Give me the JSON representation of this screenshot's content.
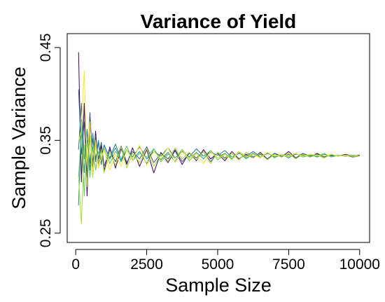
{
  "chart_data": {
    "type": "line",
    "title": "Variance of Yield",
    "xlabel": "Sample Size",
    "ylabel": "Sample Variance",
    "xlim": [
      -300,
      10350
    ],
    "ylim": [
      0.24,
      0.465
    ],
    "x_ticks": [
      0,
      2500,
      5000,
      7500,
      10000
    ],
    "x_tick_labels": [
      "0",
      "2500",
      "5000",
      "7500",
      "10000"
    ],
    "y_ticks": [
      0.25,
      0.35,
      0.45
    ],
    "y_tick_labels": [
      "0.25",
      "0.35",
      "0.45"
    ],
    "grid": false,
    "legend": "none",
    "converges_to": 0.333,
    "sample_sizes": [
      100,
      200,
      300,
      400,
      500,
      600,
      700,
      800,
      900,
      1000,
      1200,
      1400,
      1600,
      1800,
      2000,
      2250,
      2500,
      2750,
      3000,
      3250,
      3500,
      3750,
      4000,
      4250,
      4500,
      4750,
      5000,
      5250,
      5500,
      5750,
      6000,
      6250,
      6500,
      6750,
      7000,
      7250,
      7500,
      7750,
      8000,
      8250,
      8500,
      8750,
      9000,
      9250,
      9500,
      9750,
      10000
    ],
    "series": [
      {
        "color": "#440154",
        "values": [
          0.445,
          0.305,
          0.39,
          0.29,
          0.372,
          0.318,
          0.36,
          0.322,
          0.345,
          0.317,
          0.343,
          0.32,
          0.341,
          0.324,
          0.342,
          0.322,
          0.34,
          0.315,
          0.337,
          0.326,
          0.339,
          0.324,
          0.337,
          0.328,
          0.34,
          0.33,
          0.336,
          0.328,
          0.338,
          0.33,
          0.335,
          0.331,
          0.337,
          0.33,
          0.336,
          0.332,
          0.338,
          0.331,
          0.335,
          0.332,
          0.336,
          0.332,
          0.334,
          0.333,
          0.335,
          0.333,
          0.334
        ]
      },
      {
        "color": "#3b528b",
        "values": [
          0.405,
          0.335,
          0.37,
          0.31,
          0.38,
          0.325,
          0.355,
          0.33,
          0.348,
          0.322,
          0.34,
          0.327,
          0.344,
          0.326,
          0.338,
          0.33,
          0.343,
          0.326,
          0.336,
          0.33,
          0.34,
          0.327,
          0.336,
          0.331,
          0.338,
          0.327,
          0.337,
          0.331,
          0.336,
          0.329,
          0.337,
          0.332,
          0.335,
          0.33,
          0.336,
          0.333,
          0.335,
          0.331,
          0.336,
          0.333,
          0.334,
          0.332,
          0.335,
          0.333,
          0.334,
          0.332,
          0.333
        ]
      },
      {
        "color": "#21918c",
        "values": [
          0.28,
          0.372,
          0.315,
          0.362,
          0.325,
          0.358,
          0.33,
          0.35,
          0.328,
          0.345,
          0.33,
          0.342,
          0.327,
          0.34,
          0.329,
          0.338,
          0.325,
          0.341,
          0.329,
          0.337,
          0.327,
          0.34,
          0.33,
          0.337,
          0.33,
          0.339,
          0.331,
          0.336,
          0.33,
          0.338,
          0.331,
          0.336,
          0.331,
          0.337,
          0.332,
          0.335,
          0.331,
          0.336,
          0.332,
          0.335,
          0.332,
          0.335,
          0.333,
          0.334,
          0.333,
          0.334,
          0.333
        ]
      },
      {
        "color": "#2c728e",
        "values": [
          0.34,
          0.39,
          0.33,
          0.36,
          0.318,
          0.352,
          0.327,
          0.348,
          0.324,
          0.345,
          0.331,
          0.346,
          0.329,
          0.34,
          0.332,
          0.343,
          0.33,
          0.338,
          0.333,
          0.342,
          0.331,
          0.338,
          0.332,
          0.341,
          0.333,
          0.337,
          0.334,
          0.339,
          0.332,
          0.336,
          0.333,
          0.338,
          0.332,
          0.336,
          0.333,
          0.335,
          0.332,
          0.335,
          0.334,
          0.333,
          0.335,
          0.333,
          0.334,
          0.333,
          0.334,
          0.334,
          0.333
        ]
      },
      {
        "color": "#5ec962",
        "values": [
          0.31,
          0.36,
          0.29,
          0.35,
          0.31,
          0.343,
          0.318,
          0.338,
          0.33,
          0.342,
          0.325,
          0.338,
          0.33,
          0.344,
          0.328,
          0.336,
          0.332,
          0.341,
          0.327,
          0.335,
          0.331,
          0.34,
          0.328,
          0.336,
          0.333,
          0.339,
          0.329,
          0.335,
          0.332,
          0.337,
          0.33,
          0.335,
          0.332,
          0.337,
          0.331,
          0.335,
          0.333,
          0.336,
          0.332,
          0.334,
          0.333,
          0.336,
          0.332,
          0.334,
          0.333,
          0.334,
          0.333
        ]
      },
      {
        "color": "#aadc32",
        "values": [
          0.31,
          0.26,
          0.345,
          0.3,
          0.355,
          0.31,
          0.345,
          0.322,
          0.34,
          0.315,
          0.337,
          0.323,
          0.343,
          0.32,
          0.336,
          0.326,
          0.341,
          0.322,
          0.335,
          0.328,
          0.342,
          0.33,
          0.337,
          0.329,
          0.338,
          0.325,
          0.337,
          0.33,
          0.336,
          0.329,
          0.337,
          0.331,
          0.336,
          0.329,
          0.335,
          0.332,
          0.336,
          0.33,
          0.335,
          0.332,
          0.334,
          0.331,
          0.335,
          0.333,
          0.334,
          0.333,
          0.333
        ]
      },
      {
        "color": "#fde725",
        "values": [
          0.35,
          0.36,
          0.425,
          0.325,
          0.37,
          0.315,
          0.35,
          0.32,
          0.33,
          0.34,
          0.318,
          0.335,
          0.322,
          0.34,
          0.328,
          0.345,
          0.323,
          0.338,
          0.33,
          0.342,
          0.326,
          0.339,
          0.33,
          0.336,
          0.325,
          0.338,
          0.331,
          0.335,
          0.329,
          0.338,
          0.332,
          0.335,
          0.331,
          0.337,
          0.333,
          0.335,
          0.332,
          0.336,
          0.333,
          0.335,
          0.334,
          0.333,
          0.335,
          0.333,
          0.334,
          0.333,
          0.333
        ]
      }
    ]
  }
}
